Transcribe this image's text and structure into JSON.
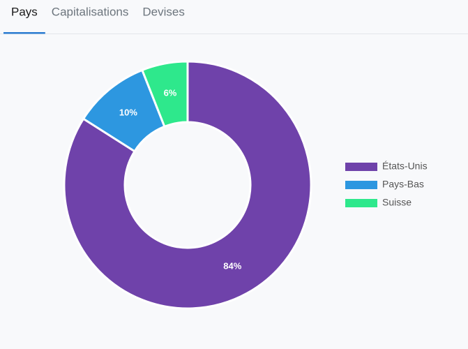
{
  "tabs": [
    "Pays",
    "Capitalisations",
    "Devises"
  ],
  "active_tab": 0,
  "chart_data": {
    "type": "pie",
    "categories": [
      "États-Unis",
      "Pays-Bas",
      "Suisse"
    ],
    "values": [
      84,
      10,
      6
    ],
    "value_labels": [
      "84%",
      "10%",
      "6%"
    ],
    "colors": [
      "#6f42aa",
      "#2d97e0",
      "#2ee88c"
    ],
    "legend": "right"
  }
}
